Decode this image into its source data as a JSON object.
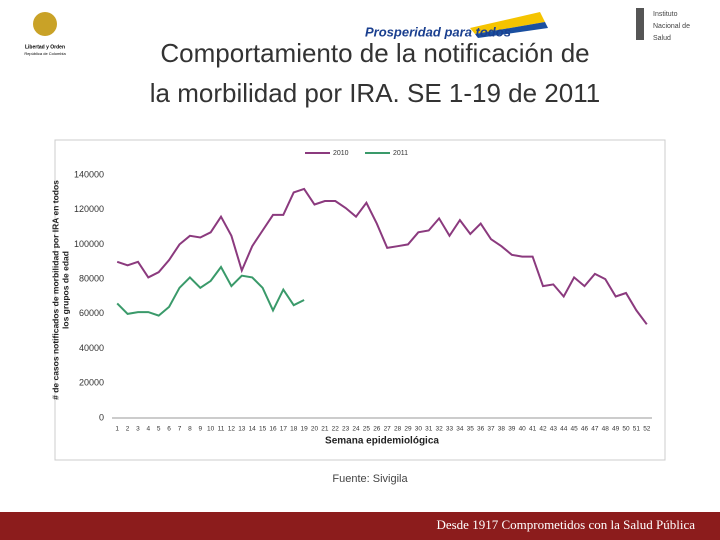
{
  "header": {
    "left_logo": [
      "Libertad y Orden",
      "República de Colombia"
    ],
    "center_logo": "Prosperidad para todos",
    "right_logo": [
      "Instituto",
      "Nacional de",
      "Salud"
    ]
  },
  "title": [
    "Comportamiento de la notificación de",
    "la morbilidad por IRA. SE 1-19 de 2011"
  ],
  "source": "Fuente: Sivigila",
  "footer": "Desde 1917 Comprometidos con la Salud Pública",
  "chart_data": {
    "type": "line",
    "xlabel": "Semana epidemiológica",
    "ylabel": [
      "# de casos notificados de morbilidad por IRA en todos",
      "los grupos de edad"
    ],
    "categories": [
      1,
      2,
      3,
      4,
      5,
      6,
      7,
      8,
      9,
      10,
      11,
      12,
      13,
      14,
      15,
      16,
      17,
      18,
      19,
      20,
      21,
      22,
      23,
      24,
      25,
      26,
      27,
      28,
      29,
      30,
      31,
      32,
      33,
      34,
      35,
      36,
      37,
      38,
      39,
      40,
      41,
      42,
      43,
      44,
      45,
      46,
      47,
      48,
      49,
      50,
      51,
      52
    ],
    "series": [
      {
        "name": "2010",
        "color": "#8b3a7e",
        "values": [
          90000,
          88000,
          90000,
          81000,
          84000,
          91000,
          100000,
          105000,
          104000,
          107000,
          116000,
          105000,
          85000,
          99000,
          108000,
          117000,
          117000,
          130000,
          132000,
          123000,
          125000,
          125000,
          121000,
          116000,
          124000,
          112000,
          98000,
          99000,
          100000,
          107000,
          108000,
          115000,
          105000,
          114000,
          106000,
          112000,
          103000,
          99000,
          94000,
          93000,
          93000,
          76000,
          77000,
          70000,
          81000,
          76000,
          83000,
          80000,
          70000,
          72000,
          62000,
          54000
        ]
      },
      {
        "name": "2011",
        "color": "#3a9a6a",
        "values": [
          66000,
          60000,
          61000,
          61000,
          59000,
          64000,
          75000,
          81000,
          75000,
          79000,
          87000,
          76000,
          82000,
          81000,
          75000,
          62000,
          74000,
          65000,
          68000,
          null,
          null,
          null,
          null,
          null,
          null,
          null,
          null,
          null,
          null,
          null,
          null,
          null,
          null,
          null,
          null,
          null,
          null,
          null,
          null,
          null,
          null,
          null,
          null,
          null,
          null,
          null,
          null,
          null,
          null,
          null,
          null,
          null
        ]
      }
    ],
    "ylim": [
      0,
      140000
    ],
    "yticks": [
      0,
      20000,
      40000,
      60000,
      80000,
      100000,
      120000,
      140000
    ],
    "grid": false,
    "legend": "top"
  }
}
